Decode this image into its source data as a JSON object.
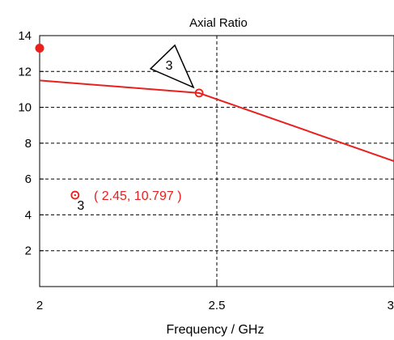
{
  "chart_data": {
    "type": "line",
    "title": "Axial Ratio",
    "xlabel": "Frequency / GHz",
    "ylabel": "",
    "xlim": [
      2,
      3
    ],
    "ylim": [
      0,
      14
    ],
    "x_ticks": [
      "2",
      "2.5",
      "3"
    ],
    "y_ticks": [
      "2",
      "4",
      "6",
      "8",
      "10",
      "12",
      "14"
    ],
    "grid": "dashed",
    "series": [
      {
        "color": "#e8201e",
        "x": [
          2.0,
          2.45,
          3.0
        ],
        "y": [
          11.5,
          10.797,
          7.0
        ]
      }
    ],
    "marker": {
      "id": "3",
      "x": 2.45,
      "y": 10.797,
      "label": "( 2.45, 10.797 )",
      "legend_symbol_label": "3"
    },
    "corner_indicator": {
      "color": "#e8201e"
    }
  }
}
